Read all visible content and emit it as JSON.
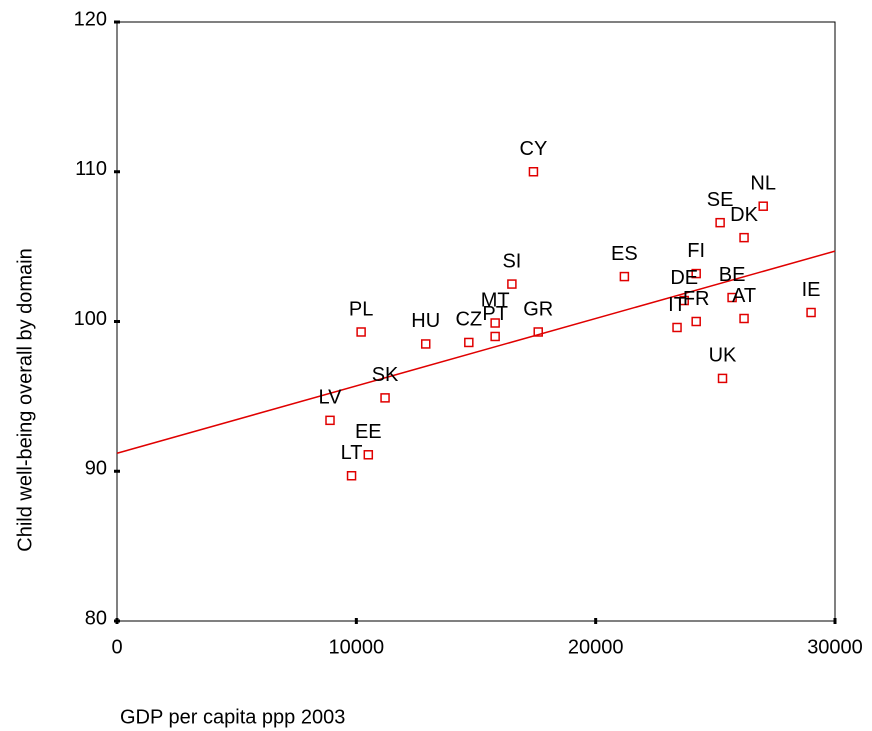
{
  "chart_data": {
    "type": "scatter",
    "x_label": "GDP per capita ppp 2003",
    "y_label": "Child well-being overall by domain",
    "labels": [
      "CY",
      "NL",
      "SE",
      "DK",
      "FI",
      "ES",
      "SI",
      "BE",
      "DE",
      "IT",
      "FR",
      "AT",
      "IE",
      "MT",
      "PT",
      "GR",
      "CZ",
      "HU",
      "PL",
      "SK",
      "LV",
      "EE",
      "LT",
      "UK"
    ],
    "x": [
      17400,
      27000,
      25200,
      26200,
      24200,
      21200,
      16500,
      25700,
      23700,
      23400,
      24200,
      26200,
      29000,
      15800,
      15800,
      17600,
      14700,
      12900,
      10200,
      11200,
      8900,
      10500,
      9800,
      25300
    ],
    "y": [
      110.0,
      107.7,
      106.6,
      105.6,
      103.2,
      103.0,
      102.5,
      101.6,
      101.4,
      99.6,
      100.0,
      100.2,
      100.6,
      99.9,
      99.0,
      99.3,
      98.6,
      98.5,
      99.3,
      94.9,
      93.4,
      91.1,
      89.7,
      96.2
    ],
    "fit": {
      "x": [
        0,
        30000
      ],
      "y": [
        91.2,
        104.7
      ]
    },
    "color": "#e00000",
    "line_color": "#e00000",
    "xlim": [
      0,
      30000
    ],
    "ylim": [
      80,
      120
    ],
    "xticks": [
      0,
      10000,
      20000,
      30000
    ],
    "yticks": [
      80,
      90,
      100,
      110,
      120
    ]
  }
}
